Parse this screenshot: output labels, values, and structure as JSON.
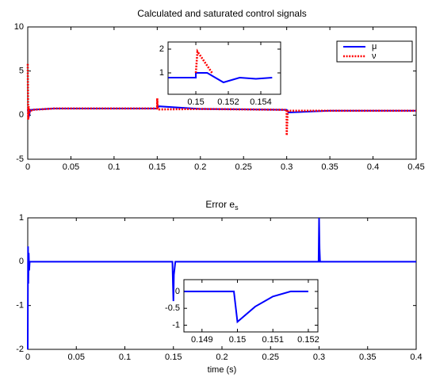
{
  "chart_data": [
    {
      "type": "line",
      "title": "Calculated and saturated control signals",
      "xlim": [
        0,
        0.45
      ],
      "xticks": [
        0,
        0.05,
        0.1,
        0.15,
        0.2,
        0.25,
        0.3,
        0.35,
        0.4,
        0.45
      ],
      "ylim": [
        -5,
        10
      ],
      "yticks": [
        -5,
        0,
        5,
        10
      ],
      "legend": "upper right",
      "series": [
        {
          "name": "μ",
          "color": "#0000ff",
          "style": "solid",
          "x": [
            0,
            0.001,
            0.003,
            0.03,
            0.15,
            0.152,
            0.2,
            0.3,
            0.302,
            0.35,
            0.45
          ],
          "values": [
            0.7,
            -0.3,
            0.6,
            0.75,
            0.75,
            1.0,
            0.7,
            0.6,
            0.3,
            0.5,
            0.5
          ]
        },
        {
          "name": "ν",
          "color": "#ff0000",
          "style": "dotted",
          "x": [
            0,
            0.0005,
            0.001,
            0.002,
            0.005,
            0.03,
            0.1499,
            0.15,
            0.1505,
            0.152,
            0.2,
            0.2999,
            0.3,
            0.301,
            0.302,
            0.35,
            0.45
          ],
          "values": [
            5.8,
            -0.5,
            1,
            0.3,
            0.6,
            0.75,
            0.75,
            1.9,
            0.75,
            0.65,
            0.7,
            0.6,
            -2.3,
            0.3,
            0.5,
            0.5,
            0.5
          ]
        }
      ]
    },
    {
      "type": "line",
      "xlim": [
        0.14829,
        0.15522
      ],
      "xticks": [
        0.15,
        0.152,
        0.154
      ],
      "ylim": [
        0.1,
        2.3
      ],
      "yticks": [
        1,
        2
      ],
      "series": [
        {
          "color": "#0000ff",
          "style": "solid",
          "x": [
            0.1483,
            0.15,
            0.15,
            0.1507,
            0.1517,
            0.1527,
            0.1537,
            0.1547
          ],
          "values": [
            0.8,
            0.8,
            1.0,
            1.0,
            0.6,
            0.8,
            0.75,
            0.8
          ]
        },
        {
          "color": "#ff0000",
          "style": "dotted",
          "x": [
            0.15,
            0.1501,
            0.151
          ],
          "values": [
            1.0,
            1.9,
            1.0
          ]
        }
      ]
    },
    {
      "type": "line",
      "title": {
        "text": "Error e",
        "subscript": "s"
      },
      "xlabel": "time (s)",
      "xlim": [
        0,
        0.4
      ],
      "xticks": [
        0,
        0.05,
        0.1,
        0.15,
        0.2,
        0.25,
        0.3,
        0.35,
        0.4
      ],
      "ylim": [
        -2,
        1
      ],
      "yticks": [
        -2,
        -1,
        0,
        1
      ],
      "series": [
        {
          "color": "#0000ff",
          "style": "solid",
          "x": [
            0,
            0.0003,
            0.0006,
            0.001,
            0.0015,
            0.002,
            0.149,
            0.1495,
            0.15,
            0.1505,
            0.152,
            0.2995,
            0.3,
            0.3005,
            0.301,
            0.4
          ],
          "values": [
            -2,
            0.35,
            -0.5,
            0.2,
            -0.2,
            0,
            0,
            -0.5,
            -0.9,
            -0.3,
            0,
            0,
            1,
            0.3,
            0,
            0
          ]
        }
      ]
    },
    {
      "type": "line",
      "xlim": [
        0.14849,
        0.15227
      ],
      "xticks": [
        0.149,
        0.15,
        0.151,
        0.152
      ],
      "ylim": [
        -1.2,
        0.35
      ],
      "yticks": [
        -1,
        -0.5,
        0
      ],
      "series": [
        {
          "color": "#0000ff",
          "style": "solid",
          "x": [
            0.1485,
            0.1499,
            0.15,
            0.1505,
            0.151,
            0.1515,
            0.152
          ],
          "values": [
            0,
            0,
            -0.9,
            -0.45,
            -0.15,
            0,
            0
          ]
        }
      ]
    }
  ]
}
